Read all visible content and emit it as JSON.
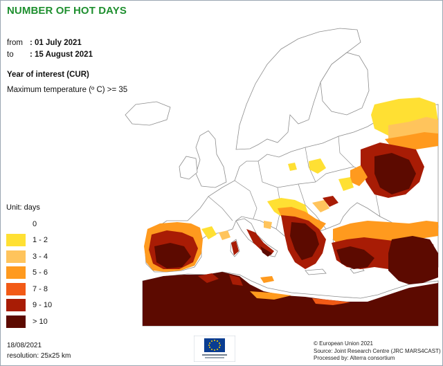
{
  "title": "NUMBER OF HOT DAYS",
  "period": {
    "from_label": "from",
    "from_value": ": 01 July 2021",
    "to_label": "to",
    "to_value": ": 15 August 2021"
  },
  "year_of_interest": "Year of interest (CUR)",
  "threshold": "Maximum temperature (º C) >= 35",
  "legend": {
    "unit": "Unit:  days",
    "classes": [
      {
        "label": "0",
        "color": "#ffffff"
      },
      {
        "label": "1 - 2",
        "color": "#ffe033"
      },
      {
        "label": "3 - 4",
        "color": "#ffc45c"
      },
      {
        "label": "5 - 6",
        "color": "#ff9a1e"
      },
      {
        "label": "7 - 8",
        "color": "#f25a16"
      },
      {
        "label": "9 - 10",
        "color": "#a81c05"
      },
      {
        "label": "> 10",
        "color": "#5c0a00"
      }
    ]
  },
  "footer": {
    "date": "18/08/2021",
    "resolution": "resolution:  25x25 km",
    "credits": [
      "© European Union 2021",
      "Source: Joint Research Centre (JRC MARS4CAST)",
      "Processed by: Alterra consortium"
    ]
  },
  "colors": {
    "title": "#1e8f2f",
    "border": "#8c8c8c",
    "sea": "#ffffff",
    "eu_flag": "#0a3d91",
    "eu_stars": "#ffd200"
  },
  "icons": {
    "logo": "european-commission-logo"
  }
}
